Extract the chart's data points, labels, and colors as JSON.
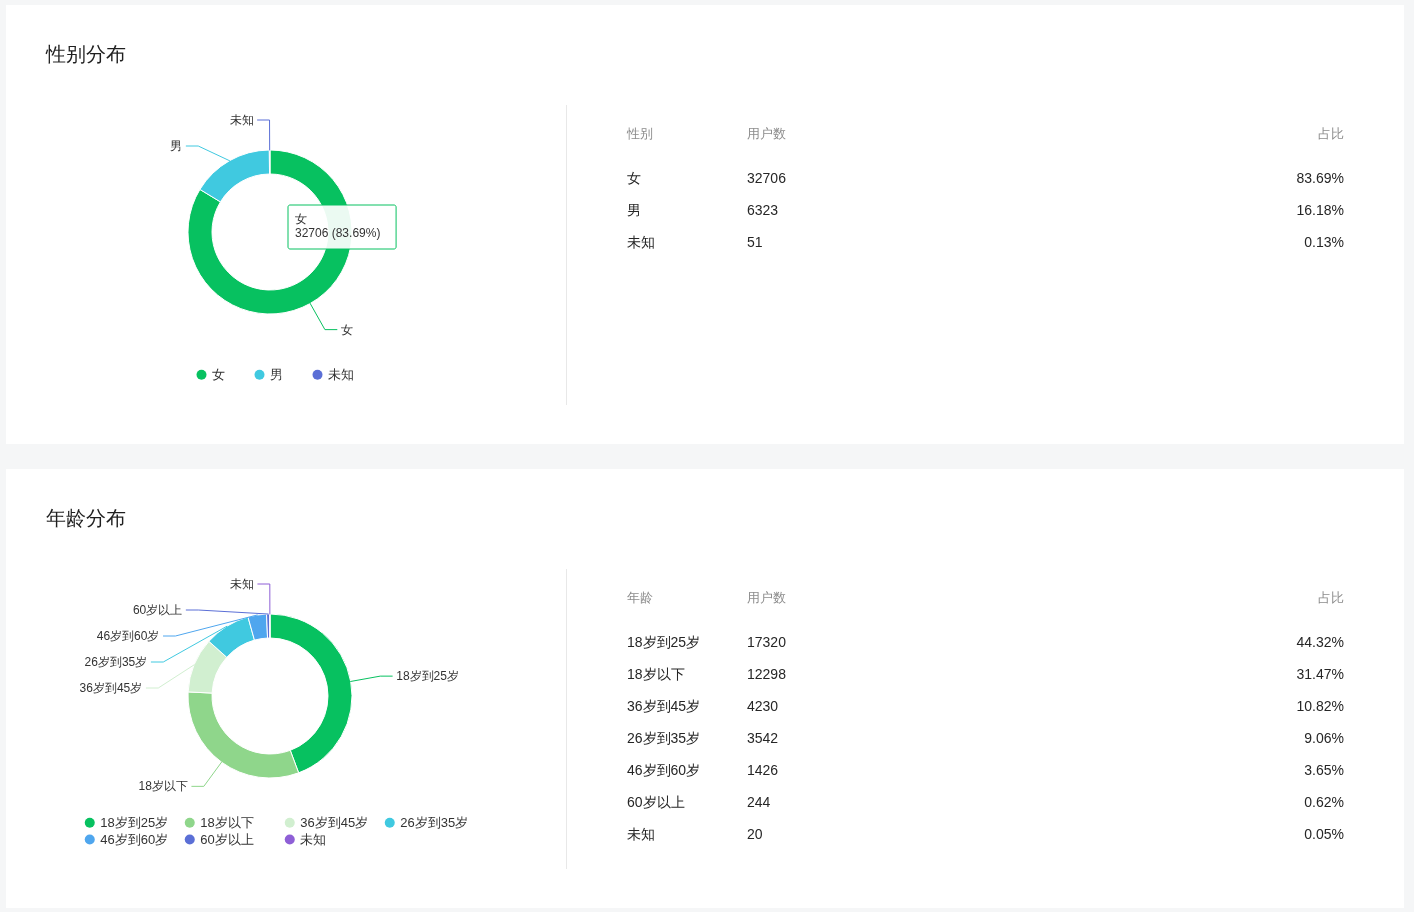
{
  "chart_data": [
    {
      "type": "donut",
      "title": "性别分布",
      "categories": [
        "女",
        "男",
        "未知"
      ],
      "values": [
        83.69,
        16.18,
        0.13
      ],
      "colors": [
        "#07c160",
        "#40c9e0",
        "#5b6fd6"
      ],
      "legend": "bottom",
      "annotations": [
        "女\n32706 (83.69%)"
      ]
    },
    {
      "type": "other",
      "annotations": [
        "性别",
        "用户数",
        "占比",
        "女",
        "32706",
        "83.69%",
        "男",
        "6323",
        "16.18%",
        "未知",
        "51",
        "0.13%"
      ]
    },
    {
      "type": "donut",
      "title": "年龄分布",
      "categories": [
        "18岁到25岁",
        "18岁以下",
        "36岁到45岁",
        "26岁到35岁",
        "46岁到60岁",
        "60岁以上",
        "未知"
      ],
      "values": [
        44.32,
        31.47,
        10.82,
        9.06,
        3.65,
        0.62,
        0.05
      ],
      "colors": [
        "#07c160",
        "#8fd68b",
        "#d1efd0",
        "#40c9e0",
        "#4fa6ee",
        "#5b6fd6",
        "#8e5fd6"
      ],
      "legend": "bottom"
    },
    {
      "type": "other",
      "annotations": [
        "年龄",
        "用户数",
        "占比",
        "18岁到25岁",
        "17320",
        "44.32%",
        "18岁以下",
        "12298",
        "31.47%",
        "36岁到45岁",
        "4230",
        "10.82%",
        "26岁到35岁",
        "3542",
        "9.06%",
        "46岁到60岁",
        "1426",
        "3.65%",
        "60岁以上",
        "244",
        "0.62%",
        "未知",
        "20",
        "0.05%"
      ]
    }
  ]
}
